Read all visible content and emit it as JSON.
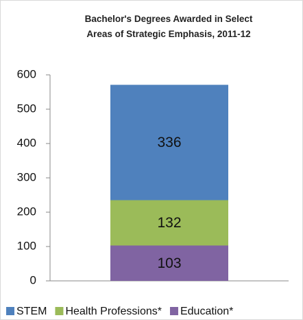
{
  "chart_data": {
    "type": "stacked_bar",
    "title": "Bachelor's Degrees Awarded in Select Areas of Strategic Emphasis, 2011-12",
    "categories": [
      null
    ],
    "series": [
      {
        "name": "STEM",
        "color": "#4f81bd",
        "values": [
          336
        ]
      },
      {
        "name": "Health Professions*",
        "color": "#9bbb59",
        "values": [
          132
        ]
      },
      {
        "name": "Education*",
        "color": "#8064a2",
        "values": [
          103
        ]
      }
    ],
    "ylim": [
      0,
      600
    ],
    "yticks": [
      0,
      100,
      200,
      300,
      400,
      500,
      600
    ],
    "grid": false,
    "legend": "bottom"
  }
}
